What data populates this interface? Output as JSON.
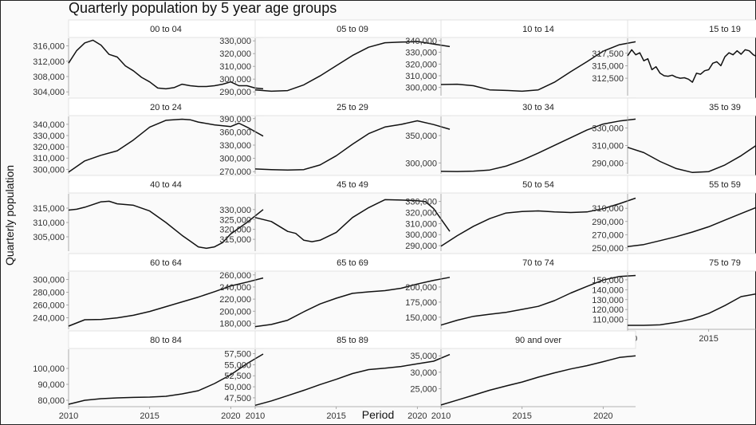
{
  "title": "Quarterly population by 5 year age groups",
  "xlabel": "Period",
  "ylabel": "Quarterly population",
  "chart_data": {
    "type": "line",
    "title": "Quarterly population by 5 year age groups",
    "xlabel": "Period",
    "ylabel": "Quarterly population",
    "x_ticks": [
      2010,
      2015,
      2020
    ],
    "xlim": [
      2010,
      2022
    ],
    "grid": false,
    "panels": [
      {
        "label": "00 to 04",
        "ylim": [
          303000,
          318000
        ],
        "yticks": [
          304000,
          308000,
          312000,
          316000
        ],
        "x": [
          2010,
          2010.5,
          2011,
          2011.5,
          2012,
          2012.5,
          2013,
          2013.5,
          2014,
          2014.5,
          2015,
          2015.5,
          2016,
          2016.5,
          2017,
          2017.5,
          2018,
          2018.5,
          2019,
          2019.5,
          2020,
          2020.5,
          2021,
          2021.5,
          2022
        ],
        "values": [
          311500,
          314800,
          316800,
          317500,
          316200,
          313800,
          313100,
          310800,
          309500,
          307800,
          306600,
          305000,
          304800,
          305100,
          306000,
          305600,
          305400,
          305400,
          305600,
          306000,
          306600,
          305600,
          305600,
          305000,
          304800
        ]
      },
      {
        "label": "05 to 09",
        "ylim": [
          287000,
          332000
        ],
        "yticks": [
          290000,
          300000,
          310000,
          320000,
          330000
        ],
        "x": [
          2010,
          2011,
          2012,
          2013,
          2014,
          2015,
          2016,
          2017,
          2018,
          2019,
          2020,
          2020.5,
          2021,
          2022
        ],
        "values": [
          291500,
          290500,
          291000,
          295500,
          302500,
          310500,
          318500,
          325000,
          328500,
          329000,
          329500,
          328500,
          327500,
          325500
        ]
      },
      {
        "label": "10 to 14",
        "ylim": [
          293000,
          342000
        ],
        "yticks": [
          300000,
          310000,
          320000,
          330000,
          340000
        ],
        "x": [
          2010,
          2011,
          2012,
          2013,
          2014,
          2015,
          2016,
          2017,
          2018,
          2019,
          2020,
          2021,
          2022
        ],
        "values": [
          302500,
          302800,
          301500,
          298000,
          297500,
          296800,
          298000,
          304500,
          313500,
          322000,
          331000,
          336500,
          339000
        ]
      },
      {
        "label": "15 to 19",
        "ylim": [
          309000,
          320500
        ],
        "yticks": [
          312500,
          315000,
          317500
        ],
        "x": [
          2010,
          2010.25,
          2010.5,
          2010.75,
          2011,
          2011.25,
          2011.5,
          2011.75,
          2012,
          2012.25,
          2012.5,
          2012.75,
          2013,
          2013.25,
          2013.5,
          2013.75,
          2014,
          2014.25,
          2014.5,
          2014.75,
          2015,
          2015.25,
          2015.5,
          2015.75,
          2016,
          2016.25,
          2016.5,
          2016.75,
          2017,
          2017.25,
          2017.5,
          2017.75,
          2018,
          2018.25,
          2018.5,
          2018.75,
          2019,
          2019.25,
          2019.5,
          2019.75,
          2020,
          2020.25,
          2020.5,
          2020.75,
          2021,
          2021.25,
          2021.5,
          2021.75,
          2022
        ],
        "values": [
          317000,
          318200,
          317200,
          317600,
          316000,
          316400,
          314200,
          314800,
          313500,
          313000,
          312900,
          313100,
          312700,
          312500,
          312600,
          312300,
          311700,
          313500,
          313300,
          314000,
          314200,
          315500,
          315800,
          315000,
          316800,
          317600,
          317200,
          318000,
          317300,
          318200,
          318000,
          317200,
          316800,
          316500,
          318000,
          317400,
          316800,
          318400,
          318200,
          319000,
          318300,
          318500,
          319600,
          317600,
          315000,
          314200,
          314500,
          314100,
          314300
        ]
      },
      {
        "label": "20 to 24",
        "ylim": [
          296000,
          347000
        ],
        "yticks": [
          300000,
          310000,
          320000,
          330000,
          340000
        ],
        "x": [
          2010,
          2011,
          2012,
          2013,
          2014,
          2015,
          2016,
          2017,
          2017.5,
          2018,
          2019,
          2020,
          2020.5,
          2021,
          2022
        ],
        "values": [
          297500,
          307500,
          312500,
          316500,
          326000,
          337500,
          343500,
          344500,
          344000,
          342000,
          339500,
          338000,
          341000,
          337500,
          329500
        ]
      },
      {
        "label": "25 to 29",
        "ylim": [
          265000,
          395000
        ],
        "yticks": [
          270000,
          300000,
          330000,
          360000,
          390000
        ],
        "x": [
          2010,
          2011,
          2012,
          2013,
          2014,
          2015,
          2016,
          2017,
          2018,
          2019,
          2020,
          2021,
          2022
        ],
        "values": [
          276000,
          274500,
          273500,
          274500,
          285000,
          306000,
          332000,
          356000,
          371000,
          377000,
          385000,
          376500,
          366000
        ]
      },
      {
        "label": "30 to 34",
        "ylim": [
          280000,
          385000
        ],
        "yticks": [
          300000,
          350000
        ],
        "x": [
          2010,
          2011,
          2012,
          2013,
          2014,
          2015,
          2016,
          2017,
          2018,
          2019,
          2020,
          2021,
          2022
        ],
        "values": [
          284500,
          284200,
          285000,
          287000,
          294000,
          305000,
          318000,
          332000,
          346000,
          360000,
          371000,
          376500,
          380000
        ]
      },
      {
        "label": "35 to 39",
        "ylim": [
          278000,
          343000
        ],
        "yticks": [
          290000,
          310000,
          330000
        ],
        "x": [
          2010,
          2011,
          2012,
          2013,
          2014,
          2015,
          2016,
          2017,
          2018,
          2019,
          2020,
          2021,
          2022
        ],
        "values": [
          308000,
          302000,
          292000,
          284000,
          279500,
          280500,
          288000,
          298500,
          311000,
          322000,
          333000,
          337000,
          340000
        ]
      },
      {
        "label": "40 to 44",
        "ylim": [
          300000,
          320000
        ],
        "yticks": [
          305000,
          310000,
          315000
        ],
        "x": [
          2010,
          2010.5,
          2011,
          2012,
          2012.5,
          2013,
          2014,
          2015,
          2016,
          2017,
          2017.5,
          2018,
          2018.5,
          2019,
          2019.5,
          2020,
          2021,
          2022
        ],
        "values": [
          314300,
          314600,
          315300,
          317200,
          317400,
          316500,
          316000,
          314000,
          310000,
          305500,
          303500,
          301500,
          301000,
          301500,
          303000,
          306000,
          310000,
          314500
        ]
      },
      {
        "label": "45 to 49",
        "ylim": [
          309000,
          338000
        ],
        "yticks": [
          315000,
          320000,
          325000,
          330000
        ],
        "x": [
          2010,
          2011,
          2012,
          2012.5,
          2013,
          2013.5,
          2014,
          2015,
          2016,
          2017,
          2018,
          2019,
          2020,
          2020.5,
          2021,
          2022
        ],
        "values": [
          326000,
          324000,
          319000,
          318000,
          314500,
          313800,
          314500,
          318500,
          326000,
          331000,
          335000,
          334800,
          334500,
          334000,
          330500,
          319000
        ]
      },
      {
        "label": "50 to 54",
        "ylim": [
          285000,
          337000
        ],
        "yticks": [
          290000,
          300000,
          310000,
          320000,
          330000
        ],
        "x": [
          2010,
          2011,
          2012,
          2013,
          2014,
          2015,
          2016,
          2017,
          2018,
          2019,
          2020,
          2021,
          2022
        ],
        "values": [
          289500,
          299000,
          307500,
          314500,
          319500,
          321000,
          321500,
          320500,
          320000,
          320500,
          323500,
          328000,
          333000
        ]
      },
      {
        "label": "55 to 59",
        "ylim": [
          245000,
          332000
        ],
        "yticks": [
          250000,
          270000,
          290000,
          310000
        ],
        "x": [
          2010,
          2011,
          2012,
          2013,
          2014,
          2015,
          2016,
          2017,
          2018,
          2019,
          2020,
          2021,
          2022
        ],
        "values": [
          252000,
          255000,
          261000,
          267000,
          274000,
          282000,
          292000,
          302000,
          312000,
          317000,
          320000,
          320000,
          318000
        ]
      },
      {
        "label": "60 to 64",
        "ylim": [
          222000,
          312000
        ],
        "yticks": [
          240000,
          260000,
          280000,
          300000
        ],
        "x": [
          2010,
          2011,
          2012,
          2013,
          2014,
          2015,
          2016,
          2017,
          2018,
          2019,
          2020,
          2021,
          2022
        ],
        "values": [
          227000,
          237000,
          237500,
          240000,
          244000,
          250000,
          257500,
          265000,
          272500,
          281000,
          290000,
          296000,
          302500
        ]
      },
      {
        "label": "65 to 69",
        "ylim": [
          170000,
          265000
        ],
        "yticks": [
          180000,
          200000,
          220000,
          240000,
          260000
        ],
        "x": [
          2010,
          2011,
          2012,
          2013,
          2014,
          2015,
          2016,
          2017,
          2018,
          2019,
          2020,
          2021,
          2022
        ],
        "values": [
          174500,
          178000,
          185000,
          199000,
          212000,
          221500,
          229500,
          232000,
          234000,
          238000,
          245000,
          251000,
          256000
        ]
      },
      {
        "label": "70 to 74",
        "ylim": [
          130000,
          225000
        ],
        "yticks": [
          150000,
          175000,
          200000
        ],
        "x": [
          2010,
          2011,
          2012,
          2013,
          2014,
          2015,
          2016,
          2017,
          2018,
          2019,
          2020,
          2021,
          2022
        ],
        "values": [
          137000,
          145000,
          151500,
          155000,
          158000,
          163000,
          168000,
          177500,
          190000,
          201000,
          211500,
          217500,
          219000
        ]
      },
      {
        "label": "75 to 79",
        "ylim": [
          100000,
          158000
        ],
        "yticks": [
          110000,
          120000,
          130000,
          140000,
          150000
        ],
        "x": [
          2010,
          2011,
          2012,
          2013,
          2014,
          2015,
          2016,
          2017,
          2018,
          2019,
          2020,
          2021,
          2021.5,
          2022
        ],
        "values": [
          104000,
          104000,
          104500,
          107000,
          110500,
          116000,
          124000,
          133000,
          136000,
          140500,
          145500,
          149500,
          152000,
          156000
        ]
      },
      {
        "label": "80 to 84",
        "ylim": [
          76000,
          112000
        ],
        "yticks": [
          80000,
          90000,
          100000
        ],
        "x": [
          2010,
          2011,
          2012,
          2013,
          2014,
          2015,
          2016,
          2017,
          2018,
          2019,
          2020,
          2021,
          2022
        ],
        "values": [
          77500,
          80000,
          81000,
          81500,
          81800,
          82000,
          82500,
          84000,
          86000,
          90500,
          96000,
          103000,
          109000
        ]
      },
      {
        "label": "85 to 89",
        "ylim": [
          45500,
          58500
        ],
        "yticks": [
          47500,
          50000,
          52500,
          55000,
          57500
        ],
        "x": [
          2010,
          2011,
          2012,
          2013,
          2014,
          2015,
          2016,
          2017,
          2018,
          2019,
          2020,
          2021,
          2022
        ],
        "values": [
          45800,
          46800,
          48000,
          49200,
          50500,
          51700,
          53000,
          53900,
          54200,
          54600,
          55200,
          55800,
          57300
        ]
      },
      {
        "label": "90 and over",
        "ylim": [
          19500,
          37000
        ],
        "yticks": [
          25000,
          30000,
          35000
        ],
        "x": [
          2010,
          2011,
          2012,
          2013,
          2014,
          2015,
          2016,
          2017,
          2018,
          2019,
          2020,
          2021,
          2022
        ],
        "values": [
          20000,
          21500,
          23000,
          24500,
          25800,
          27000,
          28500,
          29800,
          31000,
          32000,
          33200,
          34500,
          35000
        ]
      }
    ]
  }
}
